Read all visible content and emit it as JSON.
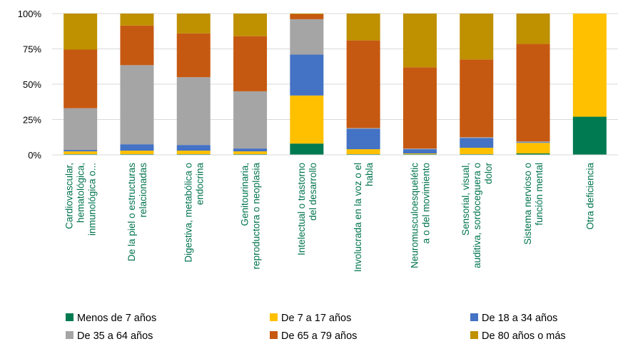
{
  "chart_data": {
    "type": "bar",
    "stacked": true,
    "normalized": true,
    "categories": [
      [
        "Cardiovascular,",
        "hematológica,",
        "inmunológica o..."
      ],
      [
        "De la piel o estructuras",
        "relacionadas"
      ],
      [
        "Digestiva, metabólica o",
        "endocrina"
      ],
      [
        "Genitourinaria,",
        "reproductora o neoplasia"
      ],
      [
        "Intelectual o trastorno",
        "del desarrollo"
      ],
      [
        "Involucrada en la voz o el",
        "habla"
      ],
      [
        "Neuromusculoesquelétic",
        "a o del movimiento"
      ],
      [
        "Sensorial, visual,",
        "auditiva, sordoceguera o",
        "dolor"
      ],
      [
        "Sistema nervioso o",
        "función mental"
      ],
      [
        "Otra deficiencia"
      ]
    ],
    "y_tick_labels": [
      "0%",
      "25%",
      "50%",
      "75%",
      "100%"
    ],
    "y_ticks": [
      0,
      25,
      50,
      75,
      100
    ],
    "ylim": [
      0,
      100
    ],
    "grid": true,
    "legend_position": "bottom",
    "series": [
      {
        "name": "Menos de 7 años",
        "color": "#007A50",
        "values": [
          0.5,
          0.5,
          0.5,
          0.5,
          8,
          0.5,
          0.5,
          0.5,
          1,
          27
        ]
      },
      {
        "name": "De 7 a 17 años",
        "color": "#FFC000",
        "values": [
          2,
          2.5,
          2.5,
          2,
          34,
          3.5,
          0.5,
          4.5,
          7.5,
          73
        ]
      },
      {
        "name": "De 18 a 34 años",
        "color": "#4472C4",
        "values": [
          1,
          4.5,
          4,
          2,
          29,
          14.5,
          3,
          7,
          0.5,
          0
        ]
      },
      {
        "name": "De 35 a 64 años",
        "color": "#A5A5A5",
        "values": [
          29.5,
          56,
          48,
          40.5,
          25,
          0.5,
          0.5,
          0.5,
          0.5,
          0
        ]
      },
      {
        "name": "De 65 a 79 años",
        "color": "#C65911",
        "values": [
          41.5,
          28,
          31,
          39,
          3.5,
          62,
          57.5,
          55,
          69,
          0
        ]
      },
      {
        "name": "De 80 años o más",
        "color": "#BF9000",
        "values": [
          25.5,
          8.5,
          14,
          16,
          0.5,
          19,
          38,
          32.5,
          21.5,
          0
        ]
      }
    ]
  }
}
